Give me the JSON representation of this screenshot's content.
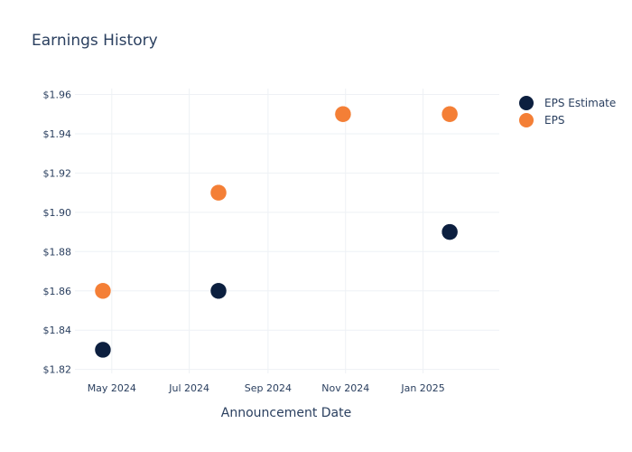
{
  "chart_data": {
    "type": "scatter",
    "title": "Earnings History",
    "xlabel": "Announcement Date",
    "ylabel": "",
    "x_ticks": [
      {
        "date": "2024-05-01",
        "label": "May 2024"
      },
      {
        "date": "2024-07-01",
        "label": "Jul 2024"
      },
      {
        "date": "2024-09-01",
        "label": "Sep 2024"
      },
      {
        "date": "2024-11-01",
        "label": "Nov 2024"
      },
      {
        "date": "2025-01-01",
        "label": "Jan 2025"
      }
    ],
    "xlim": [
      "2024-04-02",
      "2025-03-02"
    ],
    "ylim": [
      1.818,
      1.963
    ],
    "y_ticks": [
      {
        "value": 1.82,
        "label": "$1.82"
      },
      {
        "value": 1.84,
        "label": "$1.84"
      },
      {
        "value": 1.86,
        "label": "$1.86"
      },
      {
        "value": 1.88,
        "label": "$1.88"
      },
      {
        "value": 1.9,
        "label": "$1.90"
      },
      {
        "value": 1.92,
        "label": "$1.92"
      },
      {
        "value": 1.94,
        "label": "$1.94"
      },
      {
        "value": 1.96,
        "label": "$1.96"
      }
    ],
    "grid": true,
    "legend_position": "top-right",
    "series": [
      {
        "name": "EPS Estimate",
        "color": "#0c1f3f",
        "points": [
          {
            "x": "2024-04-24",
            "y": 1.83
          },
          {
            "x": "2024-07-24",
            "y": 1.86
          },
          {
            "x": "2024-10-30",
            "y": 1.95
          },
          {
            "x": "2025-01-22",
            "y": 1.89
          }
        ]
      },
      {
        "name": "EPS",
        "color": "#f47f36",
        "points": [
          {
            "x": "2024-04-24",
            "y": 1.86
          },
          {
            "x": "2024-07-24",
            "y": 1.91
          },
          {
            "x": "2024-10-30",
            "y": 1.95
          },
          {
            "x": "2025-01-22",
            "y": 1.95
          }
        ]
      }
    ]
  }
}
